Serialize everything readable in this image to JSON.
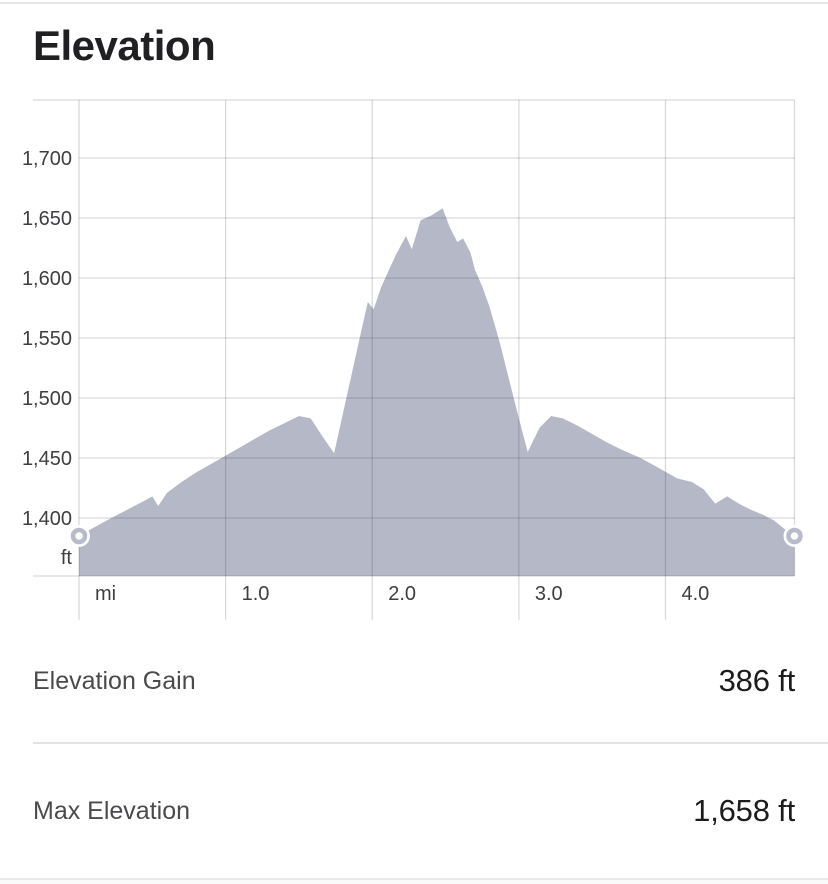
{
  "title": "Elevation",
  "chart_data": {
    "type": "area",
    "title": "Elevation",
    "legend": null,
    "grid": true,
    "x_range": [
      0,
      4.88
    ],
    "y_axis": {
      "unit": "ft",
      "min": 1400,
      "max": 1700,
      "step": 50,
      "ticks": [
        {
          "value": 1700,
          "label": "1,700"
        },
        {
          "value": 1650,
          "label": "1,650"
        },
        {
          "value": 1600,
          "label": "1,600"
        },
        {
          "value": 1550,
          "label": "1,550"
        },
        {
          "value": 1500,
          "label": "1,500"
        },
        {
          "value": 1450,
          "label": "1,450"
        },
        {
          "value": 1400,
          "label": "1,400"
        }
      ]
    },
    "x_axis": {
      "unit": "mi",
      "ticks": [
        {
          "value": 0,
          "label": "mi"
        },
        {
          "value": 1,
          "label": "1.0"
        },
        {
          "value": 2,
          "label": "2.0"
        },
        {
          "value": 3,
          "label": "3.0"
        },
        {
          "value": 4,
          "label": "4.0"
        }
      ]
    },
    "series": [
      {
        "name": "elevation-profile",
        "x": [
          0.0,
          0.1,
          0.22,
          0.33,
          0.44,
          0.5,
          0.54,
          0.6,
          0.7,
          0.8,
          0.9,
          1.0,
          1.1,
          1.2,
          1.3,
          1.4,
          1.5,
          1.58,
          1.66,
          1.74,
          1.8,
          1.86,
          1.92,
          1.97,
          2.01,
          2.06,
          2.1,
          2.16,
          2.23,
          2.27,
          2.33,
          2.4,
          2.48,
          2.53,
          2.58,
          2.62,
          2.67,
          2.7,
          2.75,
          2.8,
          2.87,
          2.94,
          3.0,
          3.06,
          3.14,
          3.22,
          3.3,
          3.4,
          3.5,
          3.6,
          3.7,
          3.83,
          3.95,
          4.08,
          4.18,
          4.26,
          4.34,
          4.42,
          4.5,
          4.58,
          4.66,
          4.74,
          4.81,
          4.88
        ],
        "y": [
          1385,
          1392,
          1400,
          1407,
          1414,
          1418,
          1410,
          1421,
          1430,
          1438,
          1445,
          1452,
          1459,
          1466,
          1473,
          1479,
          1485,
          1483,
          1468,
          1454,
          1487,
          1520,
          1553,
          1580,
          1574,
          1592,
          1603,
          1619,
          1635,
          1624,
          1648,
          1652,
          1658,
          1642,
          1630,
          1633,
          1621,
          1607,
          1593,
          1576,
          1546,
          1512,
          1483,
          1455,
          1475,
          1485,
          1483,
          1477,
          1470,
          1463,
          1457,
          1450,
          1442,
          1433,
          1430,
          1424,
          1412,
          1418,
          1412,
          1407,
          1403,
          1398,
          1391,
          1385
        ]
      }
    ],
    "annotations": {
      "start_point_mi": 0.0,
      "end_point_mi": 4.88,
      "max_elevation_ft": 1658
    },
    "colors": {
      "area": "#b5b8c6",
      "grid": "rgba(35,38,56,0.17)",
      "marker_ring": "#b7bbca",
      "marker_halo": "#ffffff",
      "tick_text": "#3e3e41"
    }
  },
  "stats": [
    {
      "label": "Elevation Gain",
      "value": "386 ft"
    },
    {
      "label": "Max Elevation",
      "value": "1,658 ft"
    }
  ]
}
